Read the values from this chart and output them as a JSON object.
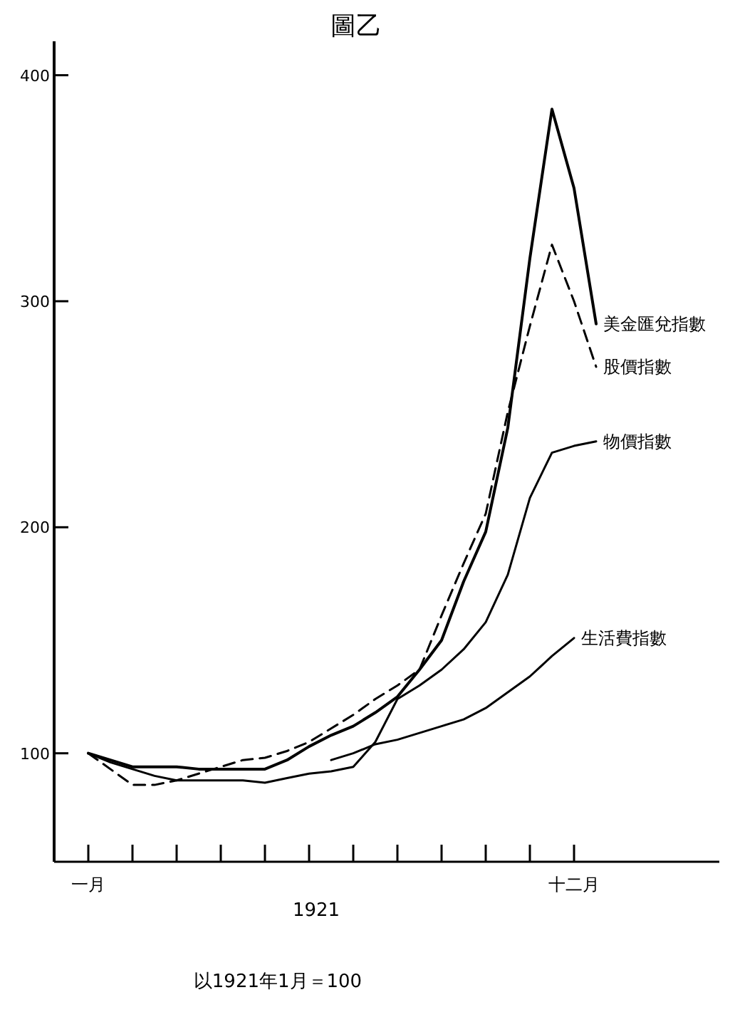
{
  "chart_data": {
    "type": "line",
    "title": "圖乙",
    "xlabel": "1921",
    "annotations": [
      "以1921年1月＝100"
    ],
    "categories": [
      "一月",
      null,
      null,
      null,
      null,
      null,
      null,
      null,
      null,
      null,
      null,
      null,
      null,
      null,
      null,
      null,
      null,
      null,
      null,
      null,
      null,
      null,
      "十二月",
      null
    ],
    "ylim": [
      52,
      415
    ],
    "yticks": [
      100,
      200,
      300,
      400
    ],
    "grid": false,
    "marker": "none",
    "series": [
      {
        "name": "美金匯兌指數",
        "color": "#000000",
        "line_style": "solid",
        "values": [
          100,
          97,
          94,
          94,
          94,
          93,
          93,
          93,
          93,
          97,
          103,
          108,
          112,
          118,
          125,
          137,
          150,
          176,
          198,
          244,
          319,
          385,
          350,
          290
        ]
      },
      {
        "name": "股價指數",
        "color": "#000000",
        "line_style": "dashed",
        "values": [
          100,
          93,
          86,
          86,
          88,
          91,
          94,
          97,
          98,
          101,
          105,
          111,
          117,
          124,
          130,
          137,
          161,
          184,
          206,
          251,
          289,
          325,
          300,
          271
        ]
      },
      {
        "name": "物價指數",
        "color": "#000000",
        "line_style": "solid",
        "values": [
          100,
          96,
          93,
          90,
          88,
          88,
          88,
          88,
          87,
          89,
          91,
          92,
          94,
          105,
          124,
          130,
          137,
          146,
          158,
          179,
          213,
          233,
          236,
          238
        ]
      },
      {
        "name": "生活費指數",
        "color": "#000000",
        "line_style": "solid",
        "values": [
          null,
          null,
          null,
          null,
          null,
          null,
          null,
          null,
          null,
          null,
          null,
          97,
          100,
          104,
          106,
          109,
          112,
          115,
          120,
          127,
          134,
          143,
          151,
          null
        ]
      }
    ]
  }
}
